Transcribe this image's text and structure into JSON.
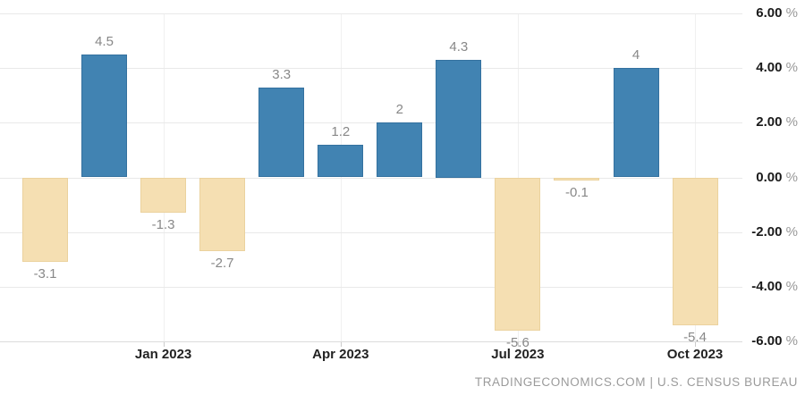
{
  "chart_data": {
    "type": "bar",
    "title": "",
    "values": [
      -3.1,
      4.5,
      -1.3,
      -2.7,
      3.3,
      1.2,
      2,
      4.3,
      -5.6,
      -0.1,
      4,
      -5.4
    ],
    "value_labels": [
      "-3.1",
      "4.5",
      "-1.3",
      "-2.7",
      "3.3",
      "1.2",
      "2",
      "4.3",
      "-5.6",
      "-0.1",
      "4",
      "-5.4"
    ],
    "x_ticks": [
      {
        "bar_index": 2,
        "label": "Jan 2023"
      },
      {
        "bar_index": 5,
        "label": "Apr 2023"
      },
      {
        "bar_index": 8,
        "label": "Jul 2023"
      },
      {
        "bar_index": 11,
        "label": "Oct 2023"
      }
    ],
    "y_ticks": [
      {
        "value": 6,
        "label": "6.00"
      },
      {
        "value": 4,
        "label": "4.00"
      },
      {
        "value": 2,
        "label": "2.00"
      },
      {
        "value": 0,
        "label": "0.00"
      },
      {
        "value": -2,
        "label": "-2.00"
      },
      {
        "value": -4,
        "label": "-4.00"
      },
      {
        "value": -6,
        "label": "-6.00"
      }
    ],
    "y_suffix": " %",
    "ylim": [
      -6,
      6
    ],
    "grid": true,
    "legend": false,
    "colors": {
      "positive": "#4183B2",
      "positive_border": "#34719F",
      "negative": "#F5DFB2",
      "negative_border": "#EBD29E",
      "grid_horizontal": "#e9e9e9",
      "grid_vertical": "#f0f0f0",
      "axis_line": "#dcdcdc",
      "tick": "#cccccc",
      "value_label": "#888888",
      "axis_number": "#1a1a1a",
      "axis_percent": "#999999",
      "month_label": "#222222",
      "footer_text": "#9b9b9b"
    }
  },
  "footer": {
    "text": "TRADINGECONOMICS.COM | U.S. CENSUS BUREAU"
  }
}
